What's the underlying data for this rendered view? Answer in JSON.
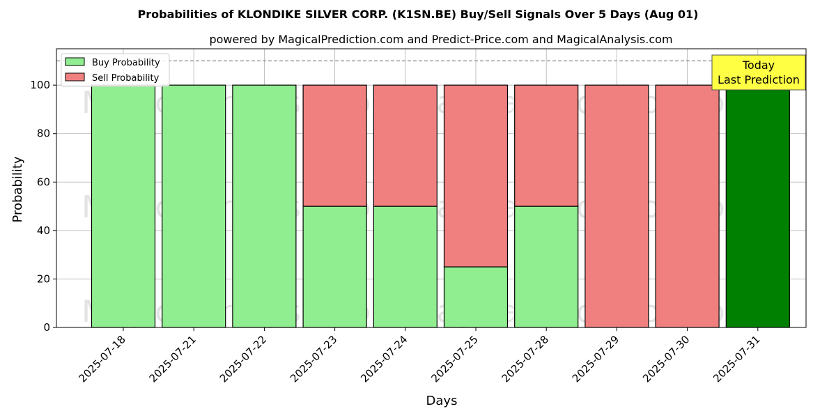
{
  "chart_data": {
    "type": "bar",
    "stacked": true,
    "title": "Probabilities of KLONDIKE SILVER CORP. (K1SN.BE) Buy/Sell Signals Over 5 Days (Aug 01)",
    "subtitle": "powered by MagicalPrediction.com and Predict-Price.com and MagicalAnalysis.com",
    "xlabel": "Days",
    "ylabel": "Probability",
    "ylim": [
      0,
      115
    ],
    "yticks": [
      0,
      20,
      40,
      60,
      80,
      100
    ],
    "reference_line": 110,
    "grid": true,
    "legend_position": "top-left",
    "categories": [
      "2025-07-18",
      "2025-07-21",
      "2025-07-22",
      "2025-07-23",
      "2025-07-24",
      "2025-07-25",
      "2025-07-28",
      "2025-07-29",
      "2025-07-30",
      "2025-07-31"
    ],
    "series": [
      {
        "name": "Buy Probability",
        "color": "#90ee90",
        "values": [
          100,
          100,
          100,
          50,
          50,
          25,
          50,
          0,
          0,
          100
        ]
      },
      {
        "name": "Sell Probability",
        "color": "#f08080",
        "values": [
          0,
          0,
          0,
          50,
          50,
          75,
          50,
          100,
          100,
          0
        ]
      }
    ],
    "highlight": {
      "index": 9,
      "color": "#008000"
    },
    "annotation": {
      "lines": [
        "Today",
        "Last Prediction"
      ],
      "color": "#ffff44"
    },
    "watermarks": [
      "MagicalAnalysis.com",
      "MagicalPrediction.com"
    ]
  }
}
